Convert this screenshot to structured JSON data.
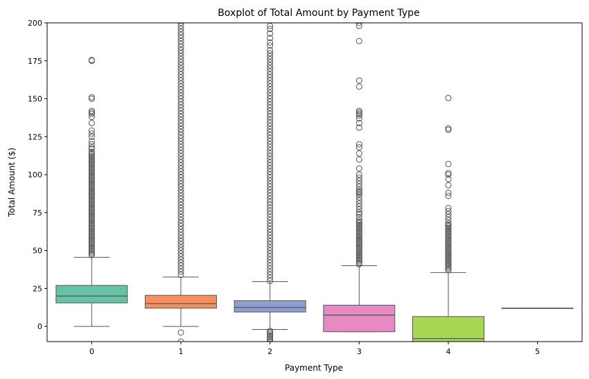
{
  "chart_data": {
    "type": "box",
    "title": "Boxplot of Total Amount by Payment Type",
    "xlabel": "Payment Type",
    "ylabel": "Total Amount ($)",
    "ylim": [
      -10,
      200
    ],
    "yticks": [
      0,
      25,
      50,
      75,
      100,
      125,
      150,
      175,
      200
    ],
    "grid": false,
    "legend": "none",
    "categories": [
      "0",
      "1",
      "2",
      "3",
      "4",
      "5"
    ],
    "colors": [
      "#66c2a5",
      "#fc8d62",
      "#8da0cb",
      "#e78ac3",
      "#a6d854",
      "#ffd92f"
    ],
    "boxes": [
      {
        "category": "0",
        "whisker_low": 0,
        "q1": 15.5,
        "median": 20,
        "q3": 27,
        "whisker_high": 45.5,
        "outliers": [
          47,
          48,
          49,
          50,
          51,
          52,
          53,
          54,
          55,
          56,
          57,
          58,
          59,
          60,
          61,
          62,
          63,
          64,
          65,
          66,
          67,
          68,
          69,
          70,
          71,
          72,
          73,
          74,
          75,
          76,
          77,
          78,
          79,
          80,
          81,
          82,
          83,
          84,
          85,
          86,
          87,
          88,
          89,
          90,
          91,
          92,
          93,
          94,
          95,
          96,
          97,
          98,
          99,
          100,
          101,
          102,
          103,
          104,
          105,
          106,
          107,
          108,
          109,
          110,
          111,
          112,
          113,
          114,
          115,
          117,
          118,
          120,
          122,
          125,
          127,
          129,
          134,
          138,
          140,
          141,
          142,
          150,
          151,
          175,
          175.5
        ]
      },
      {
        "category": "1",
        "whisker_low": 0,
        "q1": 12,
        "median": 15,
        "q3": 20.5,
        "whisker_high": 32.5,
        "outliers": [
          -4,
          -10,
          34,
          36,
          38,
          40,
          42,
          44,
          46,
          48,
          50,
          52,
          54,
          56,
          58,
          60,
          62,
          64,
          66,
          68,
          70,
          72,
          74,
          76,
          78,
          80,
          82,
          84,
          86,
          88,
          90,
          92,
          94,
          96,
          98,
          100,
          102,
          104,
          106,
          108,
          110,
          112,
          114,
          116,
          118,
          120,
          122,
          124,
          126,
          128,
          130,
          132,
          134,
          136,
          138,
          140,
          142,
          144,
          146,
          148,
          150,
          152,
          154,
          156,
          158,
          160,
          162,
          164,
          166,
          168,
          170,
          172,
          174,
          176,
          178,
          180,
          182,
          184,
          186,
          188,
          190,
          192,
          194,
          196,
          198,
          200
        ]
      },
      {
        "category": "2",
        "whisker_low": -2,
        "q1": 9.5,
        "median": 12.5,
        "q3": 17,
        "whisker_high": 29.5,
        "outliers": [
          -3,
          -4,
          -5,
          -6,
          -7,
          -8,
          -9,
          -10,
          30,
          32,
          34,
          36,
          38,
          40,
          42,
          44,
          46,
          48,
          50,
          52,
          54,
          56,
          58,
          60,
          62,
          64,
          66,
          68,
          70,
          72,
          74,
          76,
          78,
          80,
          82,
          84,
          86,
          88,
          90,
          92,
          94,
          96,
          98,
          100,
          102,
          104,
          106,
          108,
          110,
          112,
          114,
          116,
          118,
          120,
          122,
          124,
          126,
          128,
          130,
          132,
          134,
          136,
          138,
          140,
          142,
          144,
          146,
          148,
          150,
          152,
          154,
          156,
          158,
          160,
          162,
          164,
          166,
          168,
          170,
          172,
          174,
          176,
          178,
          180,
          182,
          185,
          187,
          190,
          193,
          196,
          198
        ]
      },
      {
        "category": "3",
        "whisker_low": -3.5,
        "q1": -3.5,
        "median": 7.5,
        "q3": 14,
        "whisker_high": 40,
        "outliers": [
          41,
          42,
          43,
          44,
          45,
          46,
          47,
          48,
          49,
          50,
          51,
          52,
          53,
          54,
          55,
          56,
          57,
          58,
          59,
          60,
          61,
          62,
          63,
          64,
          65,
          66,
          67,
          68,
          69,
          70,
          72,
          74,
          75,
          77,
          79,
          81,
          83,
          85,
          87,
          88,
          89,
          90,
          92,
          94,
          96,
          98,
          100,
          104,
          110,
          114,
          118,
          120,
          131,
          134,
          137,
          139,
          140,
          141,
          142,
          158,
          162,
          188,
          198,
          200
        ]
      },
      {
        "category": "4",
        "whisker_low": -10,
        "q1": -10,
        "median": -8,
        "q3": 6.5,
        "whisker_high": 35.5,
        "outliers": [
          37,
          38,
          39,
          40,
          41,
          42,
          43,
          44,
          45,
          46,
          47,
          48,
          49,
          50,
          51,
          52,
          53,
          54,
          55,
          56,
          57,
          58,
          59,
          60,
          61,
          62,
          63,
          64,
          65,
          66,
          67,
          68,
          70,
          72,
          74,
          76,
          78,
          86,
          88,
          93,
          97,
          100,
          101,
          107,
          129.5,
          130.5,
          150.5
        ]
      },
      {
        "category": "5",
        "whisker_low": 12,
        "q1": 12,
        "median": 12,
        "q3": 12,
        "whisker_high": 12,
        "outliers": []
      }
    ]
  }
}
